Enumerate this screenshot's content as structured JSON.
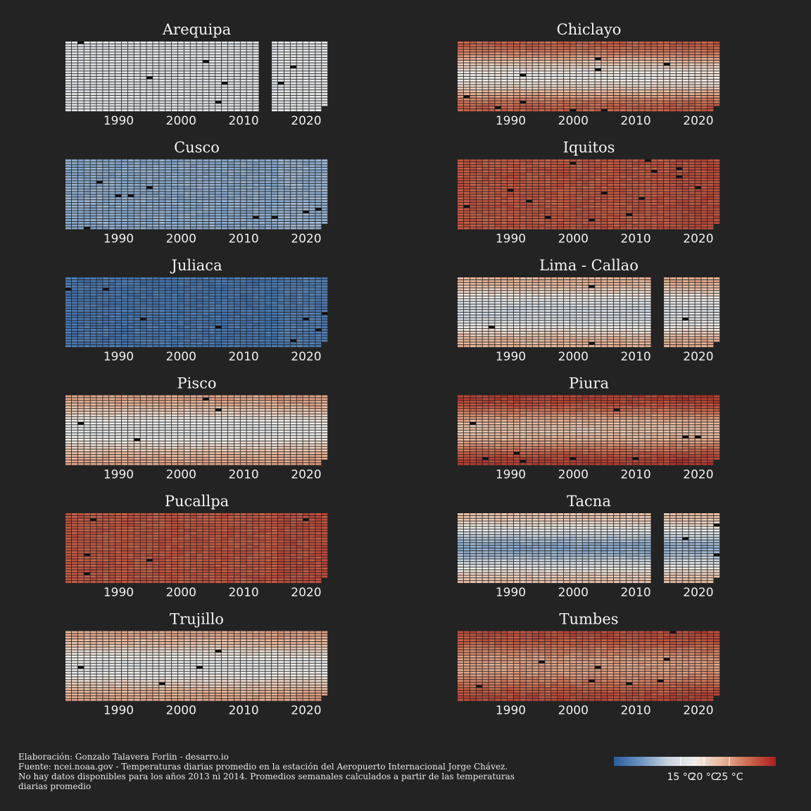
{
  "chart_data": [
    {
      "type": "heatmap",
      "title": "Arequipa",
      "x_ticks": [
        "1990",
        "2000",
        "2010",
        "2020"
      ],
      "level_c": 17.5,
      "gap_years": [
        2013,
        2014
      ]
    },
    {
      "type": "heatmap",
      "title": "Chiclayo",
      "x_ticks": [
        "1990",
        "2000",
        "2010",
        "2020"
      ],
      "level_c": 22.5,
      "seasonal_c": 3.5
    },
    {
      "type": "heatmap",
      "title": "Cusco",
      "x_ticks": [
        "1990",
        "2000",
        "2010",
        "2020"
      ],
      "level_c": 13.5
    },
    {
      "type": "heatmap",
      "title": "Iquitos",
      "x_ticks": [
        "1990",
        "2000",
        "2010",
        "2020"
      ],
      "level_c": 26.5
    },
    {
      "type": "heatmap",
      "title": "Juliaca",
      "x_ticks": [
        "1990",
        "2000",
        "2010",
        "2020"
      ],
      "level_c": 10.5
    },
    {
      "type": "heatmap",
      "title": "Lima - Callao",
      "x_ticks": [
        "1990",
        "2000",
        "2010",
        "2020"
      ],
      "level_c": 19.5,
      "seasonal_c": 3.0,
      "gap_years": [
        2013,
        2014
      ]
    },
    {
      "type": "heatmap",
      "title": "Pisco",
      "x_ticks": [
        "1990",
        "2000",
        "2010",
        "2020"
      ],
      "level_c": 20.5,
      "seasonal_c": 2.5
    },
    {
      "type": "heatmap",
      "title": "Piura",
      "x_ticks": [
        "1990",
        "2000",
        "2010",
        "2020"
      ],
      "level_c": 24.5,
      "seasonal_c": 3.0
    },
    {
      "type": "heatmap",
      "title": "Pucallpa",
      "x_ticks": [
        "1990",
        "2000",
        "2010",
        "2020"
      ],
      "level_c": 26.5
    },
    {
      "type": "heatmap",
      "title": "Tacna",
      "x_ticks": [
        "1990",
        "2000",
        "2010",
        "2020"
      ],
      "level_c": 17.5,
      "seasonal_c": 4.0,
      "gap_years": [
        2013,
        2014
      ]
    },
    {
      "type": "heatmap",
      "title": "Trujillo",
      "x_ticks": [
        "1990",
        "2000",
        "2010",
        "2020"
      ],
      "level_c": 20.5,
      "seasonal_c": 2.5
    },
    {
      "type": "heatmap",
      "title": "Tumbes",
      "x_ticks": [
        "1990",
        "2000",
        "2010",
        "2020"
      ],
      "level_c": 25.0,
      "seasonal_c": 2.0
    }
  ],
  "caption": {
    "line1": "Elaboración: Gonzalo Talavera Forlin - desarro.io",
    "line2": "Fuente: ncei.noaa.gov - Temperaturas diarias promedio en la estación del Aeropuerto Internacional Jorge Chávez.",
    "line3": "No hay datos disponibles para los años 2013 ni 2014. Promedios semanales calculados a partir de las temperaturas",
    "line4": "diarias promedio"
  },
  "legend": {
    "labels": [
      "15 °C",
      "20 °C",
      "25 °C"
    ],
    "colors": [
      "#2a5d9e",
      "#6d95c2",
      "#c8d3df",
      "#f1eeea",
      "#e8b79b",
      "#cc6a4e",
      "#a81e1e"
    ]
  },
  "year_range": [
    1982,
    2023
  ]
}
